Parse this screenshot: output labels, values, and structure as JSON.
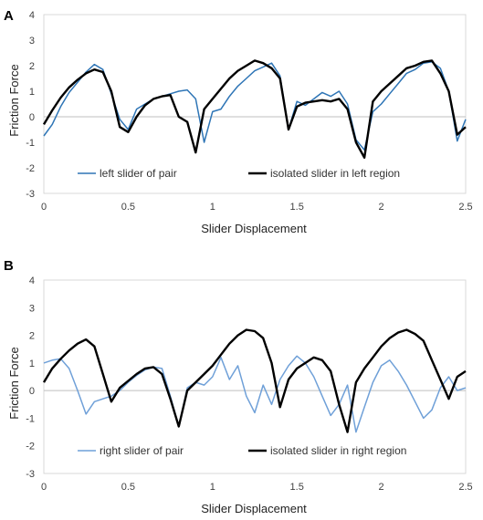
{
  "chart_data": [
    {
      "type": "line",
      "panel_label": "A",
      "xlabel": "Slider Displacement",
      "ylabel": "Friction Force",
      "xlim": [
        0,
        2.5
      ],
      "ylim": [
        -3,
        4
      ],
      "xticks": [
        "0",
        "0.5",
        "1",
        "1.5",
        "2",
        "2.5"
      ],
      "yticks": [
        "-3",
        "-2",
        "-1",
        "0",
        "1",
        "2",
        "3",
        "4"
      ],
      "grid": false,
      "legend_position": "bottom-inside",
      "series": [
        {
          "name": "left slider of pair",
          "color": "#2e75b6",
          "x": [
            0,
            0.05,
            0.1,
            0.15,
            0.2,
            0.25,
            0.3,
            0.35,
            0.4,
            0.45,
            0.5,
            0.55,
            0.6,
            0.65,
            0.7,
            0.75,
            0.8,
            0.85,
            0.9,
            0.95,
            1.0,
            1.05,
            1.1,
            1.15,
            1.2,
            1.25,
            1.3,
            1.35,
            1.4,
            1.45,
            1.5,
            1.55,
            1.6,
            1.65,
            1.7,
            1.75,
            1.8,
            1.85,
            1.9,
            1.95,
            2.0,
            2.05,
            2.1,
            2.15,
            2.2,
            2.25,
            2.3,
            2.35,
            2.4,
            2.45,
            2.5
          ],
          "y": [
            -0.75,
            -0.3,
            0.4,
            0.95,
            1.35,
            1.75,
            2.05,
            1.85,
            0.9,
            -0.1,
            -0.5,
            0.3,
            0.5,
            0.7,
            0.8,
            0.9,
            1.0,
            1.05,
            0.7,
            -1.0,
            0.2,
            0.3,
            0.8,
            1.2,
            1.5,
            1.8,
            1.95,
            2.1,
            1.6,
            -0.5,
            0.6,
            0.45,
            0.7,
            0.95,
            0.8,
            1.0,
            0.5,
            -0.9,
            -1.3,
            0.2,
            0.5,
            0.9,
            1.3,
            1.7,
            1.85,
            2.1,
            2.15,
            1.9,
            1.0,
            -0.95,
            -0.1
          ]
        },
        {
          "name": "isolated slider in left region",
          "color": "#000000",
          "x": [
            0,
            0.05,
            0.1,
            0.15,
            0.2,
            0.25,
            0.3,
            0.35,
            0.4,
            0.45,
            0.5,
            0.55,
            0.6,
            0.65,
            0.7,
            0.75,
            0.8,
            0.85,
            0.9,
            0.95,
            1.0,
            1.05,
            1.1,
            1.15,
            1.2,
            1.25,
            1.3,
            1.35,
            1.4,
            1.45,
            1.5,
            1.55,
            1.6,
            1.65,
            1.7,
            1.75,
            1.8,
            1.85,
            1.9,
            1.95,
            2.0,
            2.05,
            2.1,
            2.15,
            2.2,
            2.25,
            2.3,
            2.35,
            2.4,
            2.45,
            2.5
          ],
          "y": [
            -0.3,
            0.25,
            0.75,
            1.15,
            1.45,
            1.7,
            1.85,
            1.75,
            1.0,
            -0.4,
            -0.6,
            0.0,
            0.45,
            0.7,
            0.8,
            0.85,
            0.0,
            -0.2,
            -1.4,
            0.3,
            0.7,
            1.1,
            1.5,
            1.8,
            2.0,
            2.2,
            2.1,
            1.9,
            1.5,
            -0.5,
            0.4,
            0.55,
            0.6,
            0.65,
            0.6,
            0.7,
            0.3,
            -1.0,
            -1.6,
            0.6,
            1.0,
            1.3,
            1.6,
            1.9,
            2.0,
            2.15,
            2.2,
            1.7,
            1.0,
            -0.7,
            -0.4
          ]
        }
      ]
    },
    {
      "type": "line",
      "panel_label": "B",
      "xlabel": "Slider Displacement",
      "ylabel": "Friction Force",
      "xlim": [
        0,
        2.5
      ],
      "ylim": [
        -3,
        4
      ],
      "xticks": [
        "0",
        "0.5",
        "1",
        "1.5",
        "2",
        "2.5"
      ],
      "yticks": [
        "-3",
        "-2",
        "-1",
        "0",
        "1",
        "2",
        "3",
        "4"
      ],
      "grid": false,
      "legend_position": "bottom-inside",
      "series": [
        {
          "name": "right slider of pair",
          "color": "#6fa0d8",
          "x": [
            0,
            0.05,
            0.1,
            0.15,
            0.2,
            0.25,
            0.3,
            0.35,
            0.4,
            0.45,
            0.5,
            0.55,
            0.6,
            0.65,
            0.7,
            0.75,
            0.8,
            0.85,
            0.9,
            0.95,
            1.0,
            1.05,
            1.1,
            1.15,
            1.2,
            1.25,
            1.3,
            1.35,
            1.4,
            1.45,
            1.5,
            1.55,
            1.6,
            1.65,
            1.7,
            1.75,
            1.8,
            1.85,
            1.9,
            1.95,
            2.0,
            2.05,
            2.1,
            2.15,
            2.2,
            2.25,
            2.3,
            2.35,
            2.4,
            2.45,
            2.5
          ],
          "y": [
            1.0,
            1.1,
            1.15,
            0.8,
            0.0,
            -0.85,
            -0.4,
            -0.3,
            -0.2,
            0.0,
            0.3,
            0.55,
            0.75,
            0.85,
            0.8,
            -0.2,
            -1.3,
            0.1,
            0.3,
            0.2,
            0.5,
            1.2,
            0.4,
            0.9,
            -0.2,
            -0.8,
            0.2,
            -0.5,
            0.4,
            0.9,
            1.25,
            1.0,
            0.5,
            -0.2,
            -0.9,
            -0.5,
            0.2,
            -1.5,
            -0.6,
            0.3,
            0.9,
            1.1,
            0.7,
            0.2,
            -0.4,
            -1.0,
            -0.7,
            0.1,
            0.5,
            0.0,
            0.1
          ]
        },
        {
          "name": "isolated slider in right region",
          "color": "#000000",
          "x": [
            0,
            0.05,
            0.1,
            0.15,
            0.2,
            0.25,
            0.3,
            0.35,
            0.4,
            0.45,
            0.5,
            0.55,
            0.6,
            0.65,
            0.7,
            0.75,
            0.8,
            0.85,
            0.9,
            0.95,
            1.0,
            1.05,
            1.1,
            1.15,
            1.2,
            1.25,
            1.3,
            1.35,
            1.4,
            1.45,
            1.5,
            1.55,
            1.6,
            1.65,
            1.7,
            1.75,
            1.8,
            1.85,
            1.9,
            1.95,
            2.0,
            2.05,
            2.1,
            2.15,
            2.2,
            2.25,
            2.3,
            2.35,
            2.4,
            2.45,
            2.5
          ],
          "y": [
            0.3,
            0.8,
            1.15,
            1.45,
            1.7,
            1.85,
            1.6,
            0.6,
            -0.4,
            0.1,
            0.35,
            0.6,
            0.8,
            0.85,
            0.6,
            -0.3,
            -1.3,
            0.0,
            0.3,
            0.6,
            0.9,
            1.3,
            1.7,
            2.0,
            2.2,
            2.15,
            1.9,
            1.0,
            -0.6,
            0.4,
            0.8,
            1.0,
            1.2,
            1.1,
            0.7,
            -0.5,
            -1.5,
            0.3,
            0.8,
            1.2,
            1.6,
            1.9,
            2.1,
            2.2,
            2.05,
            1.8,
            1.1,
            0.4,
            -0.3,
            0.5,
            0.7
          ]
        }
      ]
    }
  ]
}
